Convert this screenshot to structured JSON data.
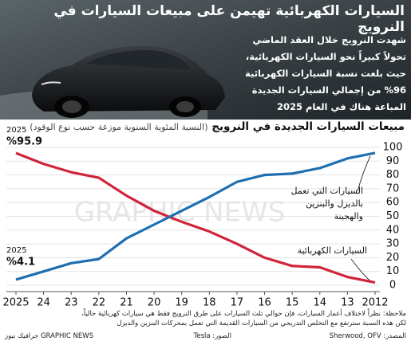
{
  "header": {
    "title": "السيارات الكهربائية تهيمن على مبيعات السيارات في النرويج",
    "text": "شهدت النرويج خلال العقد الماضي تحولاً كبيراً نحو السيارات الكهربائية، حيث بلغت نسبة السيارات الكهربائية 96% من إجمالي السيارات الجديدة المباعة هناك في العام 2025"
  },
  "chart_data": {
    "type": "line",
    "title": "مبيعات السيارات الجديدة في النرويج",
    "subtitle": "(النسبة المئوية السنوية موزعة حسب نوع الوقود)",
    "categories": [
      "2025",
      "24",
      "23",
      "22",
      "21",
      "20",
      "19",
      "18",
      "17",
      "16",
      "15",
      "14",
      "13",
      "2012"
    ],
    "series": [
      {
        "name": "السيارات الكهربائية",
        "color": "#d0253a",
        "values": [
          95.9,
          88,
          82,
          78,
          65,
          54,
          46,
          39,
          30,
          20,
          14,
          13,
          6,
          2
        ],
        "value_labels": [
          "%95.9",
          null,
          null,
          null,
          null,
          null,
          null,
          null,
          null,
          null,
          null,
          null,
          null,
          null
        ]
      },
      {
        "name": "السيارات التي تعمل بالديزل والبنزين والهجينة",
        "color": "#1f6fb0",
        "values": [
          4.1,
          10,
          16,
          19,
          34,
          44,
          54,
          64,
          75,
          80,
          81,
          85,
          92,
          96
        ],
        "value_labels": [
          "%4.1",
          null,
          null,
          null,
          null,
          null,
          null,
          null,
          null,
          null,
          null,
          null,
          null,
          null
        ]
      }
    ],
    "annotations": [
      "2025",
      "2025"
    ],
    "ylim": [
      0,
      100
    ],
    "yticks": [
      0,
      10,
      20,
      30,
      40,
      50,
      60,
      70,
      80,
      90,
      100
    ],
    "grid": true,
    "watermark": "GRAPHIC NEWS"
  },
  "footer": {
    "note": [
      "ملاحظة: نظراً لاختلاف أعمار السيارات، فإن حوالي ثلث السيارات على طرق النرويج فقط هي سيارات كهربائية حالياً،",
      "لكن هذه النسبة سترتفع مع التخلص التدريجي من السيارات القديمة التي تعمل بمحركات البنزين والديزل"
    ],
    "source": "المصدر: Sherwood, OFV",
    "photo": "الصور: Tesla",
    "credit": "GRAPHIC NEWS جرافيك نيوز"
  }
}
